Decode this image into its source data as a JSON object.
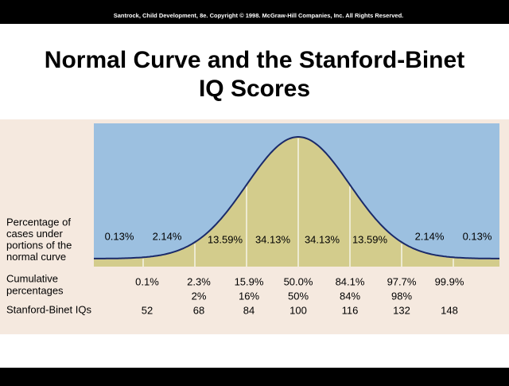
{
  "header": {
    "copyright": "Santrock, Child Development, 8e. Copyright © 1998. McGraw-Hill Companies, Inc. All Rights Reserved."
  },
  "title": {
    "lines": [
      "Normal Curve and the Stanford-Binet",
      "IQ Scores"
    ]
  },
  "row_labels": {
    "percentage": [
      "Percentage of",
      "cases under",
      "portions of the",
      "normal curve"
    ],
    "cumulative": [
      "Cumulative",
      "percentages"
    ],
    "iq": "Stanford-Binet IQs"
  },
  "percentages": [
    "0.13%",
    "2.14%",
    "13.59%",
    "34.13%",
    "34.13%",
    "13.59%",
    "2.14%",
    "0.13%"
  ],
  "cumulative": {
    "primary": [
      "0.1%",
      "2.3%",
      "15.9%",
      "50.0%",
      "84.1%",
      "97.7%",
      "99.9%"
    ],
    "rounded": [
      "2%",
      "16%",
      "50%",
      "84%",
      "98%"
    ]
  },
  "iq_scores": [
    "52",
    "68",
    "84",
    "100",
    "116",
    "132",
    "148"
  ]
}
